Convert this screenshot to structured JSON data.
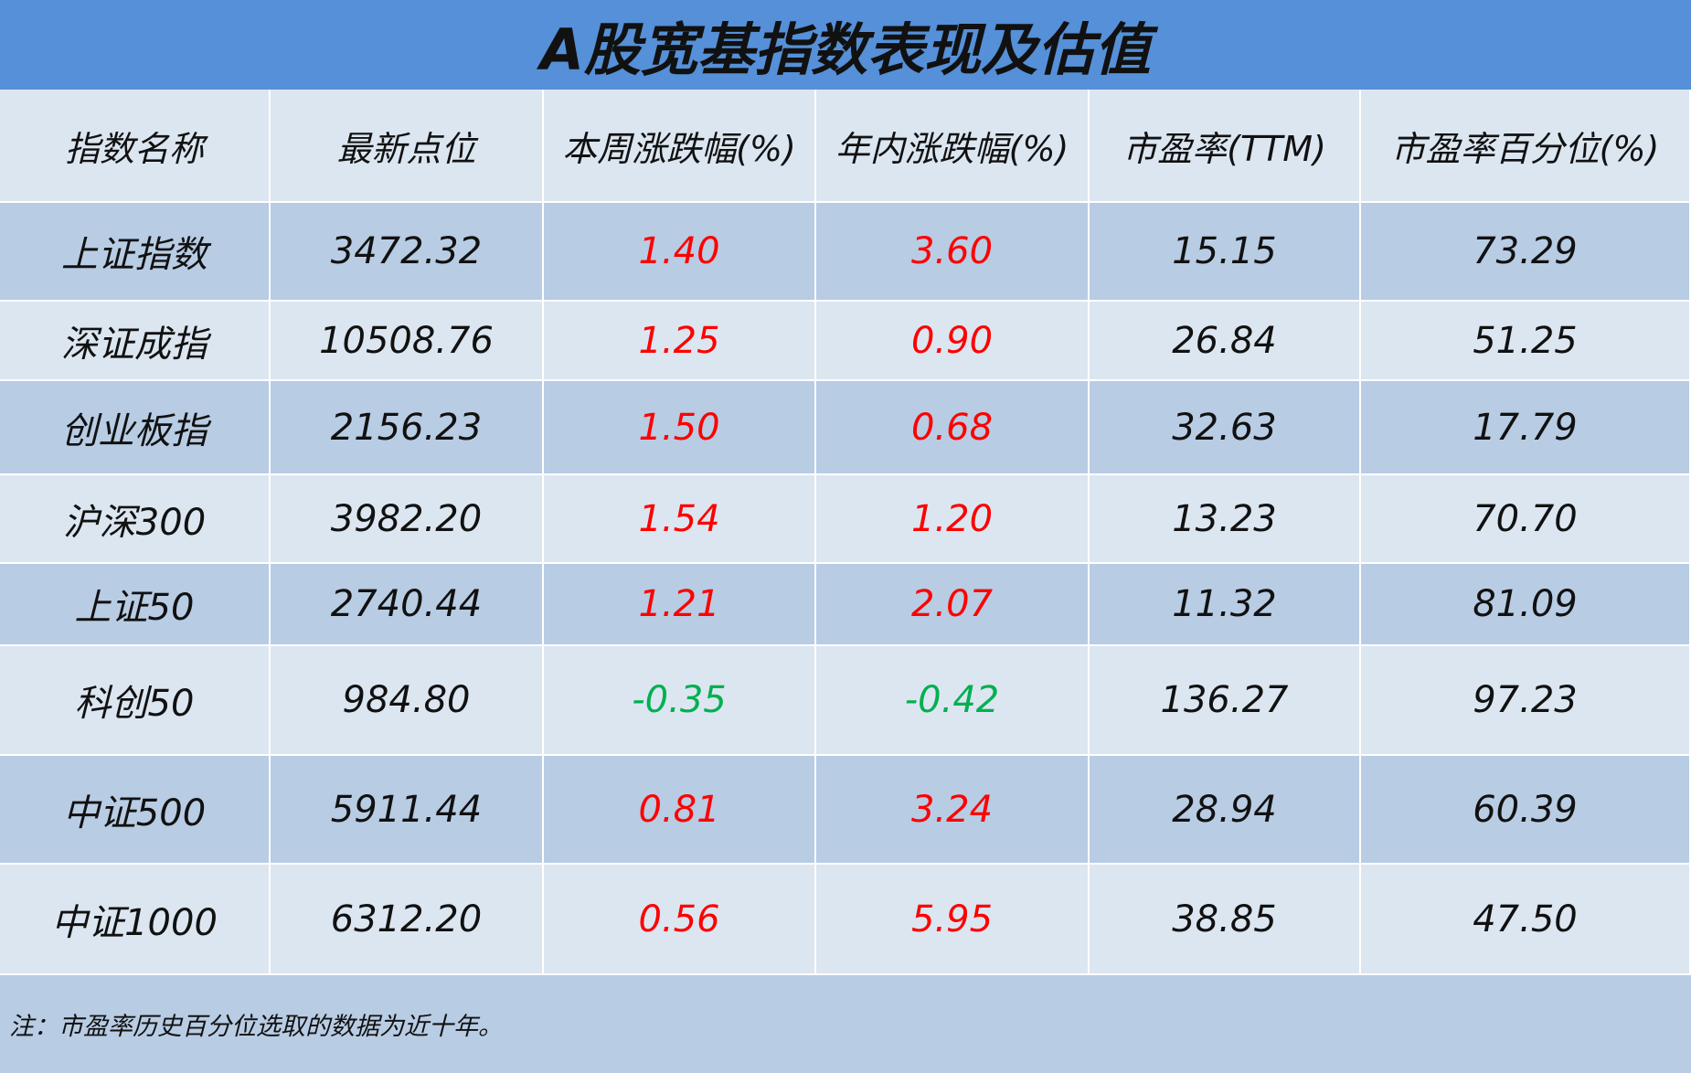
{
  "header": {
    "title": "A股宽基指数表现及估值"
  },
  "table": {
    "columns": [
      "指数名称",
      "最新点位",
      "本周涨跌幅(%)",
      "年内涨跌幅(%)",
      "市盈率(TTM)",
      "市盈率百分位(%)"
    ],
    "rows": [
      [
        "上证指数",
        "3472.32",
        "1.40",
        "3.60",
        "15.15",
        "73.29"
      ],
      [
        "深证成指",
        "10508.76",
        "1.25",
        "0.90",
        "26.84",
        "51.25"
      ],
      [
        "创业板指",
        "2156.23",
        "1.50",
        "0.68",
        "32.63",
        "17.79"
      ],
      [
        "沪深300",
        "3982.20",
        "1.54",
        "1.20",
        "13.23",
        "70.70"
      ],
      [
        "上证50",
        "2740.44",
        "1.21",
        "2.07",
        "11.32",
        "81.09"
      ],
      [
        "科创50",
        "984.80",
        "-0.35",
        "-0.42",
        "136.27",
        "97.23"
      ],
      [
        "中证500",
        "5911.44",
        "0.81",
        "3.24",
        "28.94",
        "60.39"
      ],
      [
        "中证1000",
        "6312.20",
        "0.56",
        "5.95",
        "38.85",
        "47.50"
      ]
    ],
    "change_columns": [
      2,
      3
    ],
    "colors": {
      "up": "#ff0000",
      "down": "#00b050"
    }
  },
  "note": "注：市盈率历史百分位选取的数据为近十年。"
}
